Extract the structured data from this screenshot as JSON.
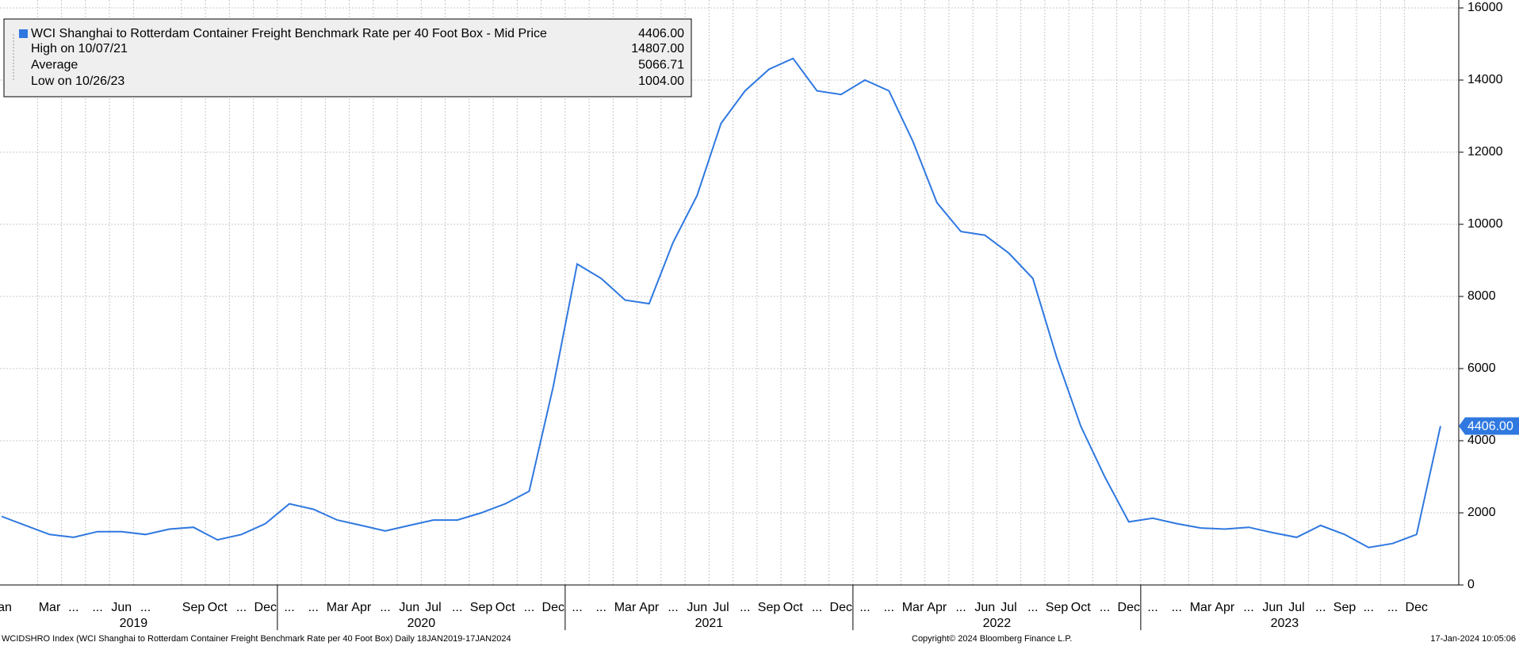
{
  "chart_data": {
    "type": "line",
    "x": [
      "2019-01",
      "2019-02",
      "2019-03",
      "2019-04",
      "2019-05",
      "2019-06",
      "2019-07",
      "2019-08",
      "2019-09",
      "2019-10",
      "2019-11",
      "2019-12",
      "2020-01",
      "2020-02",
      "2020-03",
      "2020-04",
      "2020-05",
      "2020-06",
      "2020-07",
      "2020-08",
      "2020-09",
      "2020-10",
      "2020-11",
      "2020-12",
      "2021-01",
      "2021-02",
      "2021-03",
      "2021-04",
      "2021-05",
      "2021-06",
      "2021-07",
      "2021-08",
      "2021-09",
      "2021-10",
      "2021-11",
      "2021-12",
      "2022-01",
      "2022-02",
      "2022-03",
      "2022-04",
      "2022-05",
      "2022-06",
      "2022-07",
      "2022-08",
      "2022-09",
      "2022-10",
      "2022-11",
      "2022-12",
      "2023-01",
      "2023-02",
      "2023-03",
      "2023-04",
      "2023-05",
      "2023-06",
      "2023-07",
      "2023-08",
      "2023-09",
      "2023-10",
      "2023-11",
      "2023-12",
      "2024-01"
    ],
    "series": [
      {
        "name": "WCI Shanghai to Rotterdam Container Freight Benchmark Rate per 40 Foot Box - Mid Price",
        "color": "#2f78e0",
        "values": [
          1900,
          1650,
          1400,
          1320,
          1480,
          1480,
          1400,
          1550,
          1600,
          1250,
          1400,
          1700,
          2250,
          2100,
          1800,
          1650,
          1500,
          1650,
          1800,
          1800,
          2000,
          2250,
          2600,
          5500,
          8900,
          8500,
          7900,
          7800,
          9500,
          10800,
          12800,
          13700,
          14300,
          14600,
          13700,
          13600,
          14000,
          13700,
          12300,
          10600,
          9800,
          9700,
          9200,
          8500,
          6300,
          4400,
          3000,
          1750,
          1850,
          1700,
          1580,
          1550,
          1600,
          1450,
          1320,
          1650,
          1400,
          1040,
          1150,
          1400,
          4406
        ]
      }
    ],
    "last_label": "4406.00",
    "ylim": [
      0,
      16000
    ],
    "yticks": [
      0,
      2000,
      4000,
      6000,
      8000,
      10000,
      12000,
      14000,
      16000
    ],
    "grid": true,
    "xticks": [
      {
        "value": "2019-01",
        "label": "Jan"
      },
      {
        "value": "2019-03",
        "label": "Mar"
      },
      {
        "value": "2019-04",
        "label": "..."
      },
      {
        "value": "2019-05",
        "label": "..."
      },
      {
        "value": "2019-06",
        "label": "Jun"
      },
      {
        "value": "2019-07",
        "label": "..."
      },
      {
        "value": "2019-09",
        "label": "Sep"
      },
      {
        "value": "2019-10",
        "label": "Oct"
      },
      {
        "value": "2019-11",
        "label": "..."
      },
      {
        "value": "2019-12",
        "label": "Dec"
      },
      {
        "value": "2020-01",
        "label": "..."
      },
      {
        "value": "2020-02",
        "label": "..."
      },
      {
        "value": "2020-03",
        "label": "Mar"
      },
      {
        "value": "2020-04",
        "label": "Apr"
      },
      {
        "value": "2020-05",
        "label": "..."
      },
      {
        "value": "2020-06",
        "label": "Jun"
      },
      {
        "value": "2020-07",
        "label": "Jul"
      },
      {
        "value": "2020-08",
        "label": "..."
      },
      {
        "value": "2020-09",
        "label": "Sep"
      },
      {
        "value": "2020-10",
        "label": "Oct"
      },
      {
        "value": "2020-11",
        "label": "..."
      },
      {
        "value": "2020-12",
        "label": "Dec"
      },
      {
        "value": "2021-01",
        "label": "..."
      },
      {
        "value": "2021-02",
        "label": "..."
      },
      {
        "value": "2021-03",
        "label": "Mar"
      },
      {
        "value": "2021-04",
        "label": "Apr"
      },
      {
        "value": "2021-05",
        "label": "..."
      },
      {
        "value": "2021-06",
        "label": "Jun"
      },
      {
        "value": "2021-07",
        "label": "Jul"
      },
      {
        "value": "2021-08",
        "label": "..."
      },
      {
        "value": "2021-09",
        "label": "Sep"
      },
      {
        "value": "2021-10",
        "label": "Oct"
      },
      {
        "value": "2021-11",
        "label": "..."
      },
      {
        "value": "2021-12",
        "label": "Dec"
      },
      {
        "value": "2022-01",
        "label": "..."
      },
      {
        "value": "2022-02",
        "label": "..."
      },
      {
        "value": "2022-03",
        "label": "Mar"
      },
      {
        "value": "2022-04",
        "label": "Apr"
      },
      {
        "value": "2022-05",
        "label": "..."
      },
      {
        "value": "2022-06",
        "label": "Jun"
      },
      {
        "value": "2022-07",
        "label": "Jul"
      },
      {
        "value": "2022-08",
        "label": "..."
      },
      {
        "value": "2022-09",
        "label": "Sep"
      },
      {
        "value": "2022-10",
        "label": "Oct"
      },
      {
        "value": "2022-11",
        "label": "..."
      },
      {
        "value": "2022-12",
        "label": "Dec"
      },
      {
        "value": "2023-01",
        "label": "..."
      },
      {
        "value": "2023-02",
        "label": "..."
      },
      {
        "value": "2023-03",
        "label": "Mar"
      },
      {
        "value": "2023-04",
        "label": "Apr"
      },
      {
        "value": "2023-05",
        "label": "..."
      },
      {
        "value": "2023-06",
        "label": "Jun"
      },
      {
        "value": "2023-07",
        "label": "Jul"
      },
      {
        "value": "2023-08",
        "label": "..."
      },
      {
        "value": "2023-09",
        "label": "Sep"
      },
      {
        "value": "2023-10",
        "label": "..."
      },
      {
        "value": "2023-11",
        "label": "..."
      },
      {
        "value": "2023-12",
        "label": "Dec"
      }
    ],
    "years": [
      "2019",
      "2020",
      "2021",
      "2022",
      "2023"
    ],
    "legend": {
      "last": "4406.00",
      "stats": [
        {
          "label": "High on 10/07/21",
          "value": "14807.00"
        },
        {
          "label": "Average",
          "value": "5066.71"
        },
        {
          "label": "Low on 10/26/23",
          "value": "1004.00"
        }
      ]
    },
    "footer": {
      "left": "WCIDSHRO Index (WCI Shanghai to Rotterdam Container Freight Benchmark Rate per 40 Foot Box)  Daily 18JAN2019-17JAN2024",
      "center": "Copyright© 2024 Bloomberg Finance L.P.",
      "right": "17-Jan-2024 10:05:06"
    }
  }
}
